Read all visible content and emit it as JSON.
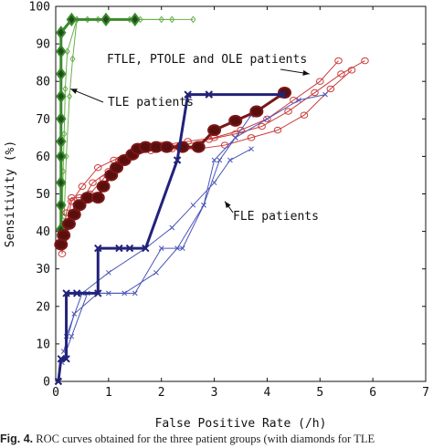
{
  "chart_data": {
    "type": "line",
    "xlabel": "False Positive Rate (/h)",
    "ylabel": "Sensitivity (%)",
    "xlim": [
      0,
      7
    ],
    "ylim": [
      0,
      100
    ],
    "x_ticks": [
      "0",
      "1",
      "2",
      "3",
      "4",
      "5",
      "6",
      "7"
    ],
    "y_ticks": [
      "0",
      "10",
      "20",
      "30",
      "40",
      "50",
      "60",
      "70",
      "80",
      "90",
      "100"
    ],
    "grid": false,
    "annotations": [
      {
        "text": "FTLE, PTOLE and OLE patients",
        "arrow_to": [
          4.8,
          82
        ]
      },
      {
        "text": "TLE patients",
        "arrow_to": [
          0.28,
          78
        ]
      },
      {
        "text": "FLE patients",
        "arrow_to": [
          3.2,
          48
        ]
      }
    ],
    "series": [
      {
        "group": "TLE",
        "color": "#3a8a2e",
        "style": "bold",
        "marker": "diamond",
        "x": [
          0.1,
          0.1,
          0.1,
          0.1,
          0.1,
          0.1,
          0.1,
          0.1,
          0.1,
          0.1,
          0.3,
          0.95,
          1.5
        ],
        "y": [
          40.5,
          47,
          53,
          60,
          64,
          70,
          76,
          82,
          88,
          93,
          96.5,
          96.5,
          96.5
        ]
      },
      {
        "group": "TLE",
        "color": "#6ab04c",
        "style": "thin",
        "marker": "diamond",
        "x": [
          0.12,
          0.14,
          0.16,
          0.18,
          0.22,
          0.4,
          0.8,
          1.4,
          2.0,
          2.6
        ],
        "y": [
          42,
          56,
          66,
          78,
          88,
          96.5,
          96.5,
          96.5,
          96.5,
          96.5
        ]
      },
      {
        "group": "TLE",
        "color": "#6ab04c",
        "style": "thin",
        "marker": "diamond",
        "x": [
          0.16,
          0.2,
          0.26,
          0.32,
          0.4,
          0.6,
          1.0,
          1.6,
          2.2
        ],
        "y": [
          44,
          60,
          76,
          86,
          96.5,
          96.5,
          96.5,
          96.5,
          96.5
        ]
      },
      {
        "group": "FTLE, PTOLE and OLE",
        "color": "#7a1717",
        "style": "bold",
        "marker": "circle",
        "x": [
          0.1,
          0.15,
          0.25,
          0.35,
          0.45,
          0.6,
          0.8,
          0.9,
          1.05,
          1.15,
          1.3,
          1.45,
          1.55,
          1.7,
          1.9,
          2.1,
          2.4,
          2.7,
          3.0,
          3.4,
          3.8,
          4.33
        ],
        "y": [
          36.5,
          39,
          42,
          44.5,
          47,
          49,
          49,
          52,
          55,
          57,
          59,
          60.5,
          62,
          62.5,
          62.5,
          62.5,
          62.5,
          62.5,
          67,
          69.5,
          72,
          77
        ]
      },
      {
        "group": "FTLE, PTOLE and OLE",
        "color": "#cc3c3c",
        "style": "thin",
        "marker": "circle",
        "x": [
          0.12,
          0.2,
          0.3,
          0.45,
          0.65,
          0.9,
          1.2,
          1.6,
          2.0,
          2.5,
          3.0,
          3.5,
          4.0,
          4.5,
          5.0,
          5.35
        ],
        "y": [
          34,
          45,
          49,
          49,
          50,
          54,
          59,
          62,
          63,
          64,
          65,
          67,
          70,
          75,
          80,
          85.5
        ]
      },
      {
        "group": "FTLE, PTOLE and OLE",
        "color": "#cc3c3c",
        "style": "thin",
        "marker": "circle",
        "x": [
          0.15,
          0.3,
          0.5,
          0.8,
          1.1,
          1.5,
          1.9,
          2.4,
          2.9,
          3.4,
          3.9,
          4.4,
          4.9,
          5.4,
          5.85
        ],
        "y": [
          38,
          48,
          52,
          57,
          59,
          61,
          63,
          63,
          64.5,
          66,
          68,
          72,
          77,
          82,
          85.5
        ]
      },
      {
        "group": "FTLE, PTOLE and OLE",
        "color": "#cc3c3c",
        "style": "thin",
        "marker": "circle",
        "x": [
          0.2,
          0.4,
          0.7,
          1.0,
          1.4,
          1.8,
          2.2,
          2.7,
          3.2,
          3.7,
          4.2,
          4.7,
          5.2,
          5.6
        ],
        "y": [
          41,
          46,
          53,
          56,
          60,
          61.5,
          62,
          62,
          63,
          65,
          67,
          71,
          78,
          83
        ]
      },
      {
        "group": "FLE",
        "color": "#22227a",
        "style": "bold",
        "marker": "x",
        "x": [
          0.05,
          0.1,
          0.2,
          0.2,
          0.4,
          0.8,
          0.8,
          1.2,
          1.4,
          1.7,
          2.3,
          2.5,
          2.9,
          2.9,
          4.3
        ],
        "y": [
          0,
          6,
          6,
          23.5,
          23.5,
          23.5,
          35.5,
          35.5,
          35.5,
          35.5,
          59,
          76.5,
          76.5,
          76.5,
          76.5
        ]
      },
      {
        "group": "FLE",
        "color": "#4a55b8",
        "style": "thin",
        "marker": "x",
        "x": [
          0.12,
          0.3,
          0.6,
          1.0,
          1.5,
          2.0,
          2.4,
          2.8,
          3.0,
          3.4,
          4.0,
          4.6,
          5.1
        ],
        "y": [
          5,
          12,
          23.5,
          23.5,
          23.5,
          35.5,
          35.5,
          47,
          59,
          65,
          70,
          75,
          76.5
        ]
      },
      {
        "group": "FLE",
        "color": "#4a55b8",
        "style": "thin",
        "marker": "x",
        "x": [
          0.15,
          0.35,
          0.8,
          1.3,
          1.9,
          2.3,
          2.8,
          3.1,
          3.4,
          3.7
        ],
        "y": [
          8,
          18,
          23.5,
          23.5,
          29,
          35.5,
          47,
          59,
          65,
          71
        ]
      },
      {
        "group": "FLE",
        "color": "#4a55b8",
        "style": "thin",
        "marker": "x",
        "x": [
          0.2,
          0.5,
          1.0,
          1.7,
          2.2,
          2.6,
          3.0,
          3.3,
          3.7
        ],
        "y": [
          12,
          23.5,
          29,
          35.5,
          41,
          47,
          53,
          59,
          62
        ]
      }
    ]
  },
  "caption": {
    "prefix": "Fig. 4.",
    "text": "ROC curves obtained for the three patient groups (with diamonds for TLE"
  }
}
